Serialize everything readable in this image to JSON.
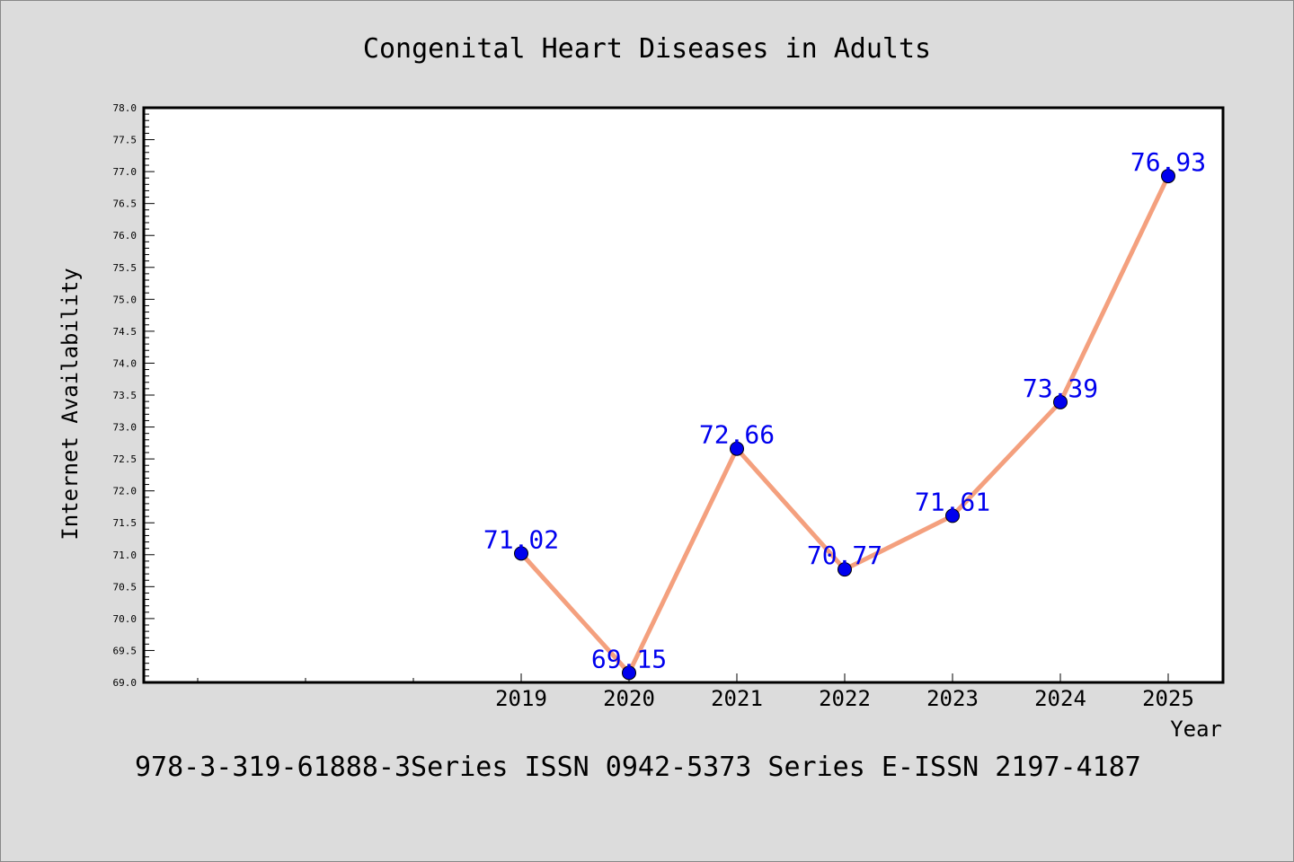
{
  "chart_data": {
    "type": "line",
    "title": "Congenital Heart Diseases in Adults",
    "xlabel": "Year",
    "ylabel": "Internet Availability",
    "footer": "978-3-319-61888-3Series ISSN 0942-5373 Series E-ISSN 2197-4187",
    "categories": [
      "2019",
      "2020",
      "2021",
      "2022",
      "2023",
      "2024",
      "2025"
    ],
    "series": [
      {
        "values": [
          71.02,
          69.15,
          72.66,
          70.77,
          71.61,
          73.39,
          76.93
        ],
        "line_color": "#f4a07e",
        "marker_color": "#0000ee"
      }
    ],
    "data_labels": [
      "71.02",
      "69.15",
      "72.66",
      "70.77",
      "71.61",
      "73.39",
      "76.93"
    ],
    "yticks": [
      "69.0",
      "69.5",
      "70.0",
      "70.5",
      "71.0",
      "71.5",
      "72.0",
      "72.5",
      "73.0",
      "73.5",
      "74.0",
      "74.5",
      "75.0",
      "75.5",
      "76.0",
      "76.5",
      "77.0",
      "77.5",
      "78.0"
    ],
    "ylim": [
      69.0,
      78.0
    ],
    "grid": false,
    "legend": "none",
    "colors": {
      "background": "#dcdcdc",
      "plot_background": "#ffffff",
      "label": "#0000ee",
      "text": "#000000"
    }
  }
}
